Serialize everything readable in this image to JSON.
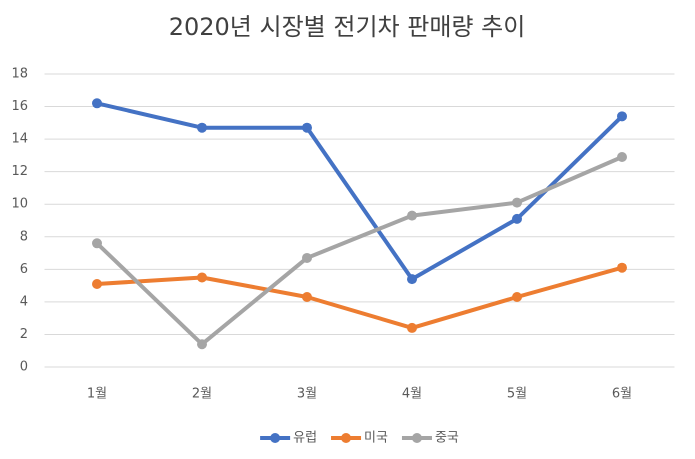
{
  "chart_data": {
    "type": "line",
    "title": "2020년 시장별 전기차 판매량 추이",
    "categories": [
      "1월",
      "2월",
      "3월",
      "4월",
      "5월",
      "6월"
    ],
    "series": [
      {
        "name": "유럽",
        "color": "#4472c4",
        "values": [
          16.2,
          14.7,
          14.7,
          5.4,
          9.1,
          15.4
        ]
      },
      {
        "name": "미국",
        "color": "#ed7d31",
        "values": [
          5.1,
          5.5,
          4.3,
          2.4,
          4.3,
          6.1
        ]
      },
      {
        "name": "중국",
        "color": "#a5a5a5",
        "values": [
          7.6,
          1.4,
          6.7,
          9.3,
          10.1,
          12.9
        ]
      }
    ],
    "ylim": [
      0,
      18
    ],
    "yticks": [
      0,
      2,
      4,
      6,
      8,
      10,
      12,
      14,
      16,
      18
    ],
    "grid": true,
    "legend": "bottom"
  }
}
